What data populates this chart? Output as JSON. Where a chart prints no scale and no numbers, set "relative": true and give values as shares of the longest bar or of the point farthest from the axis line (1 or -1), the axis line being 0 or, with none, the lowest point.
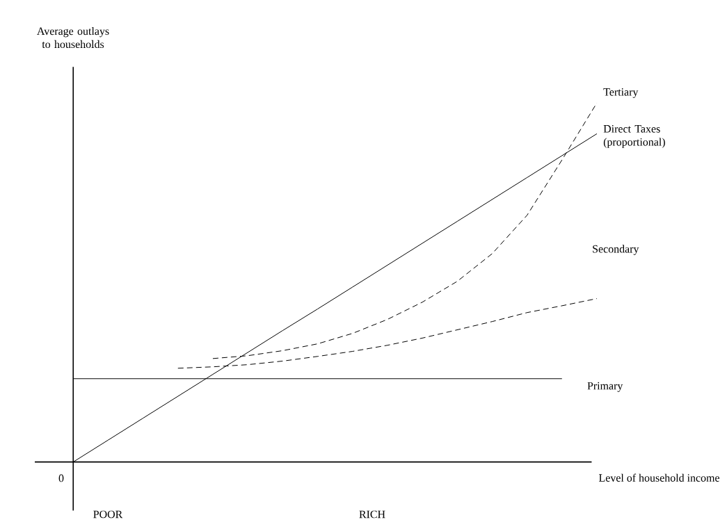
{
  "chart_data": {
    "type": "line",
    "relative": true,
    "xlabel": "Level of household income",
    "ylabel": "Average outlays to households",
    "annotations": [
      "0",
      "POOR",
      "RICH"
    ],
    "categories": [
      null,
      null,
      null,
      null,
      null,
      null,
      null,
      null,
      null,
      null,
      null,
      null,
      null,
      null,
      null,
      null
    ],
    "series": [
      {
        "name": "Tertiary",
        "color": "#000000",
        "line_style": "dashed",
        "values": [
          null,
          null,
          null,
          null,
          0.288,
          0.296,
          0.31,
          0.329,
          0.358,
          0.397,
          0.445,
          0.503,
          0.58,
          0.687,
          0.841,
          1.0
        ]
      },
      {
        "name": "Direct Taxes (proportional)",
        "color": "#000000",
        "line_style": "solid",
        "values": [
          0,
          0.061,
          0.122,
          0.183,
          0.244,
          0.305,
          0.366,
          0.426,
          0.487,
          0.548,
          0.609,
          0.67,
          0.731,
          0.792,
          0.853,
          0.914
        ]
      },
      {
        "name": "Secondary",
        "color": "#000000",
        "line_style": "dashed",
        "values": [
          null,
          null,
          null,
          0.261,
          0.265,
          0.271,
          0.281,
          0.294,
          0.308,
          0.325,
          0.345,
          0.368,
          0.391,
          0.416,
          0.435,
          0.455
        ]
      },
      {
        "name": "Primary",
        "color": "#000000",
        "line_style": "solid",
        "values": [
          0.232,
          0.232,
          0.232,
          0.232,
          0.232,
          0.232,
          0.232,
          0.232,
          0.232,
          0.232,
          0.232,
          0.232,
          0.232,
          0.232,
          0.232,
          null
        ]
      }
    ]
  }
}
